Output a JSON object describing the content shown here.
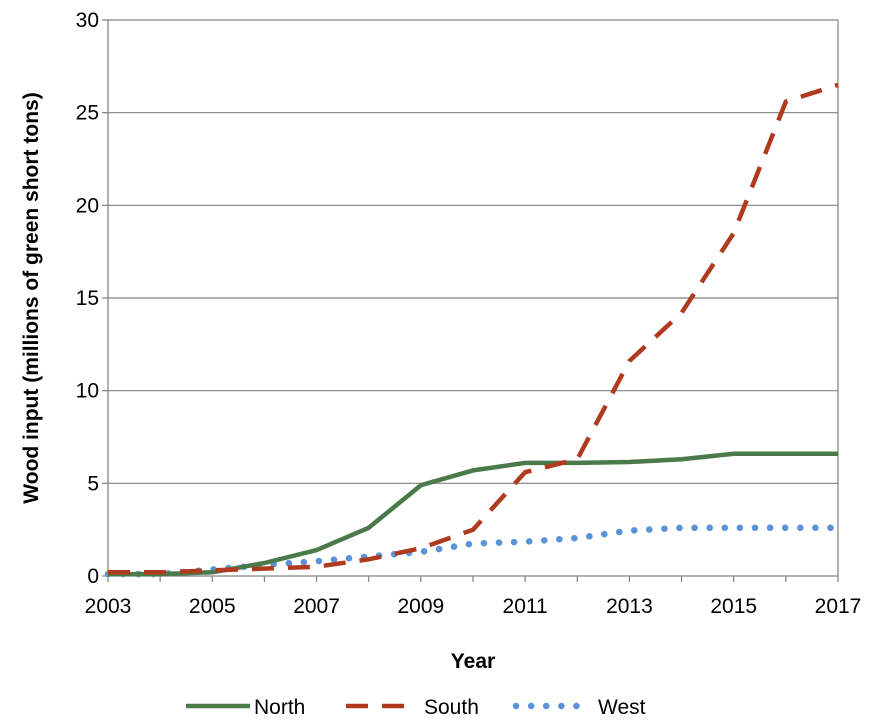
{
  "chart_data": {
    "type": "line",
    "title": "",
    "xlabel": "Year",
    "ylabel": "Wood input (millions of green short tons)",
    "xlim": [
      2003,
      2017
    ],
    "ylim": [
      0,
      30
    ],
    "xticks": [
      2003,
      2005,
      2007,
      2009,
      2011,
      2013,
      2015,
      2017
    ],
    "xtick_labels": [
      "2003",
      "2005",
      "2007",
      "2009",
      "2011",
      "2013",
      "2015",
      "2017"
    ],
    "yticks": [
      0,
      5,
      10,
      15,
      20,
      25,
      30
    ],
    "ytick_labels": [
      "0",
      "5",
      "10",
      "15",
      "20",
      "25",
      "30"
    ],
    "grid": "horizontal",
    "legend_position": "bottom",
    "x": [
      2003,
      2004,
      2005,
      2006,
      2007,
      2008,
      2009,
      2010,
      2011,
      2012,
      2013,
      2014,
      2015,
      2016,
      2017
    ],
    "series": [
      {
        "name": "North",
        "style": "solid",
        "color": "#4a7a4a",
        "values": [
          0.1,
          0.1,
          0.2,
          0.7,
          1.4,
          2.6,
          4.9,
          5.7,
          6.1,
          6.1,
          6.15,
          6.3,
          6.6,
          6.6,
          6.6
        ]
      },
      {
        "name": "South",
        "style": "dashed",
        "color": "#b03a1e",
        "values": [
          0.2,
          0.2,
          0.3,
          0.4,
          0.5,
          0.9,
          1.5,
          2.5,
          5.6,
          6.3,
          11.6,
          14.2,
          18.5,
          25.6,
          26.5
        ]
      },
      {
        "name": "West",
        "style": "dotted",
        "color": "#5b93d8",
        "values": [
          0.1,
          0.1,
          0.35,
          0.6,
          0.8,
          1.05,
          1.3,
          1.75,
          1.85,
          2.05,
          2.45,
          2.6,
          2.6,
          2.6,
          2.6
        ]
      }
    ]
  }
}
